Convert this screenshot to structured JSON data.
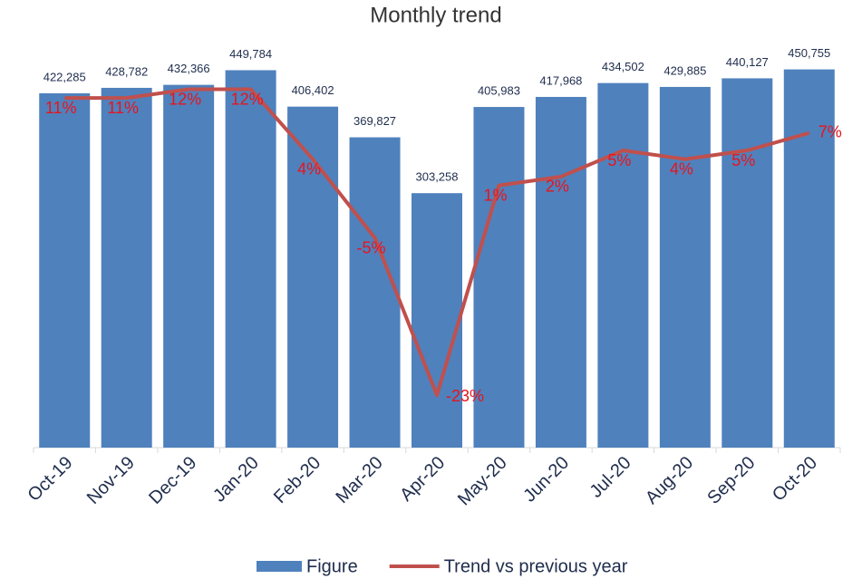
{
  "chart_data": {
    "type": "bar",
    "title": "Monthly trend",
    "categories": [
      "Oct-19",
      "Nov-19",
      "Dec-19",
      "Jan-20",
      "Feb-20",
      "Mar-20",
      "Apr-20",
      "May-20",
      "Jun-20",
      "Jul-20",
      "Aug-20",
      "Sep-20",
      "Oct-20"
    ],
    "series": [
      {
        "name": "Figure",
        "type": "bar",
        "color": "#4f81bd",
        "values": [
          422285,
          428782,
          432366,
          449784,
          406402,
          369827,
          303258,
          405983,
          417968,
          434502,
          429885,
          440127,
          450755
        ],
        "value_labels": [
          "422,285",
          "428,782",
          "432,366",
          "449,784",
          "406,402",
          "369,827",
          "303,258",
          "405,983",
          "417,968",
          "434,502",
          "429,885",
          "440,127",
          "450,755"
        ]
      },
      {
        "name": "Trend vs previous year",
        "type": "line",
        "axis": "y2",
        "color": "#c0504d",
        "values": [
          11,
          11,
          12,
          12,
          4,
          -5,
          -23,
          1,
          2,
          5,
          4,
          5,
          7
        ],
        "value_labels": [
          "11%",
          "11%",
          "12%",
          "12%",
          "4%",
          "-5%",
          "-23%",
          "1%",
          "2%",
          "5%",
          "4%",
          "5%",
          "7%"
        ]
      }
    ],
    "ylim": [
      0,
      500000
    ],
    "y2lim": [
      -29,
      19
    ],
    "legend": "bottom"
  }
}
